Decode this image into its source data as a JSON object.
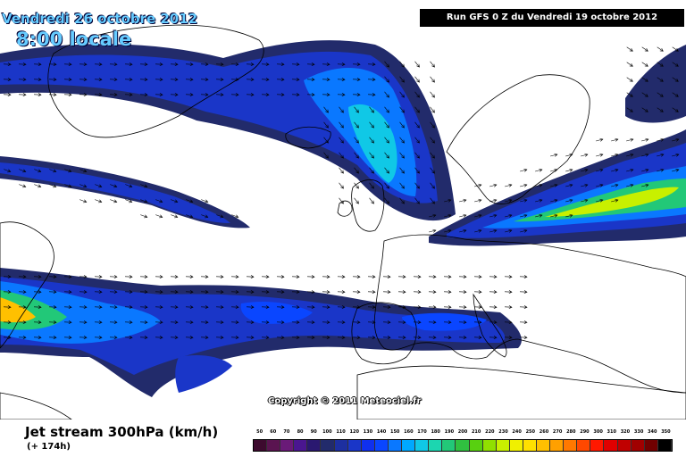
{
  "header": {
    "date_title": "Vendredi 26 octobre 2012",
    "time_title": "8:00 locale",
    "run_info": "Run GFS 0 Z du Vendredi 19 octobre 2012"
  },
  "map": {
    "copyright": "Copyright © 2011 Meteociel.fr",
    "background_color": "#ffffff",
    "land_outline_color": "#000000"
  },
  "footer": {
    "variable_title": "Jet stream 300hPa (km/h)",
    "lead_time": "(+ 174h)"
  },
  "legend": {
    "labels": [
      "50",
      "60",
      "70",
      "80",
      "90",
      "100",
      "110",
      "120",
      "130",
      "140",
      "150",
      "160",
      "170",
      "180",
      "190",
      "200",
      "210",
      "220",
      "230",
      "240",
      "250",
      "260",
      "270",
      "280",
      "290",
      "300",
      "310",
      "320",
      "330",
      "340",
      "350"
    ],
    "colors": [
      "#3d0a2e",
      "#5a1450",
      "#6a1a78",
      "#4a1690",
      "#2a1870",
      "#222b6b",
      "#1d2fa0",
      "#1a36c8",
      "#1030ee",
      "#0a46ff",
      "#0a78ff",
      "#00a8ff",
      "#10c8e6",
      "#1cd6b0",
      "#22c878",
      "#30c040",
      "#58d010",
      "#90e000",
      "#c8f000",
      "#f0f000",
      "#ffe000",
      "#ffc000",
      "#ffa000",
      "#ff7800",
      "#ff4800",
      "#ff1800",
      "#e00000",
      "#c00000",
      "#a00000",
      "#700000",
      "#000000"
    ]
  }
}
